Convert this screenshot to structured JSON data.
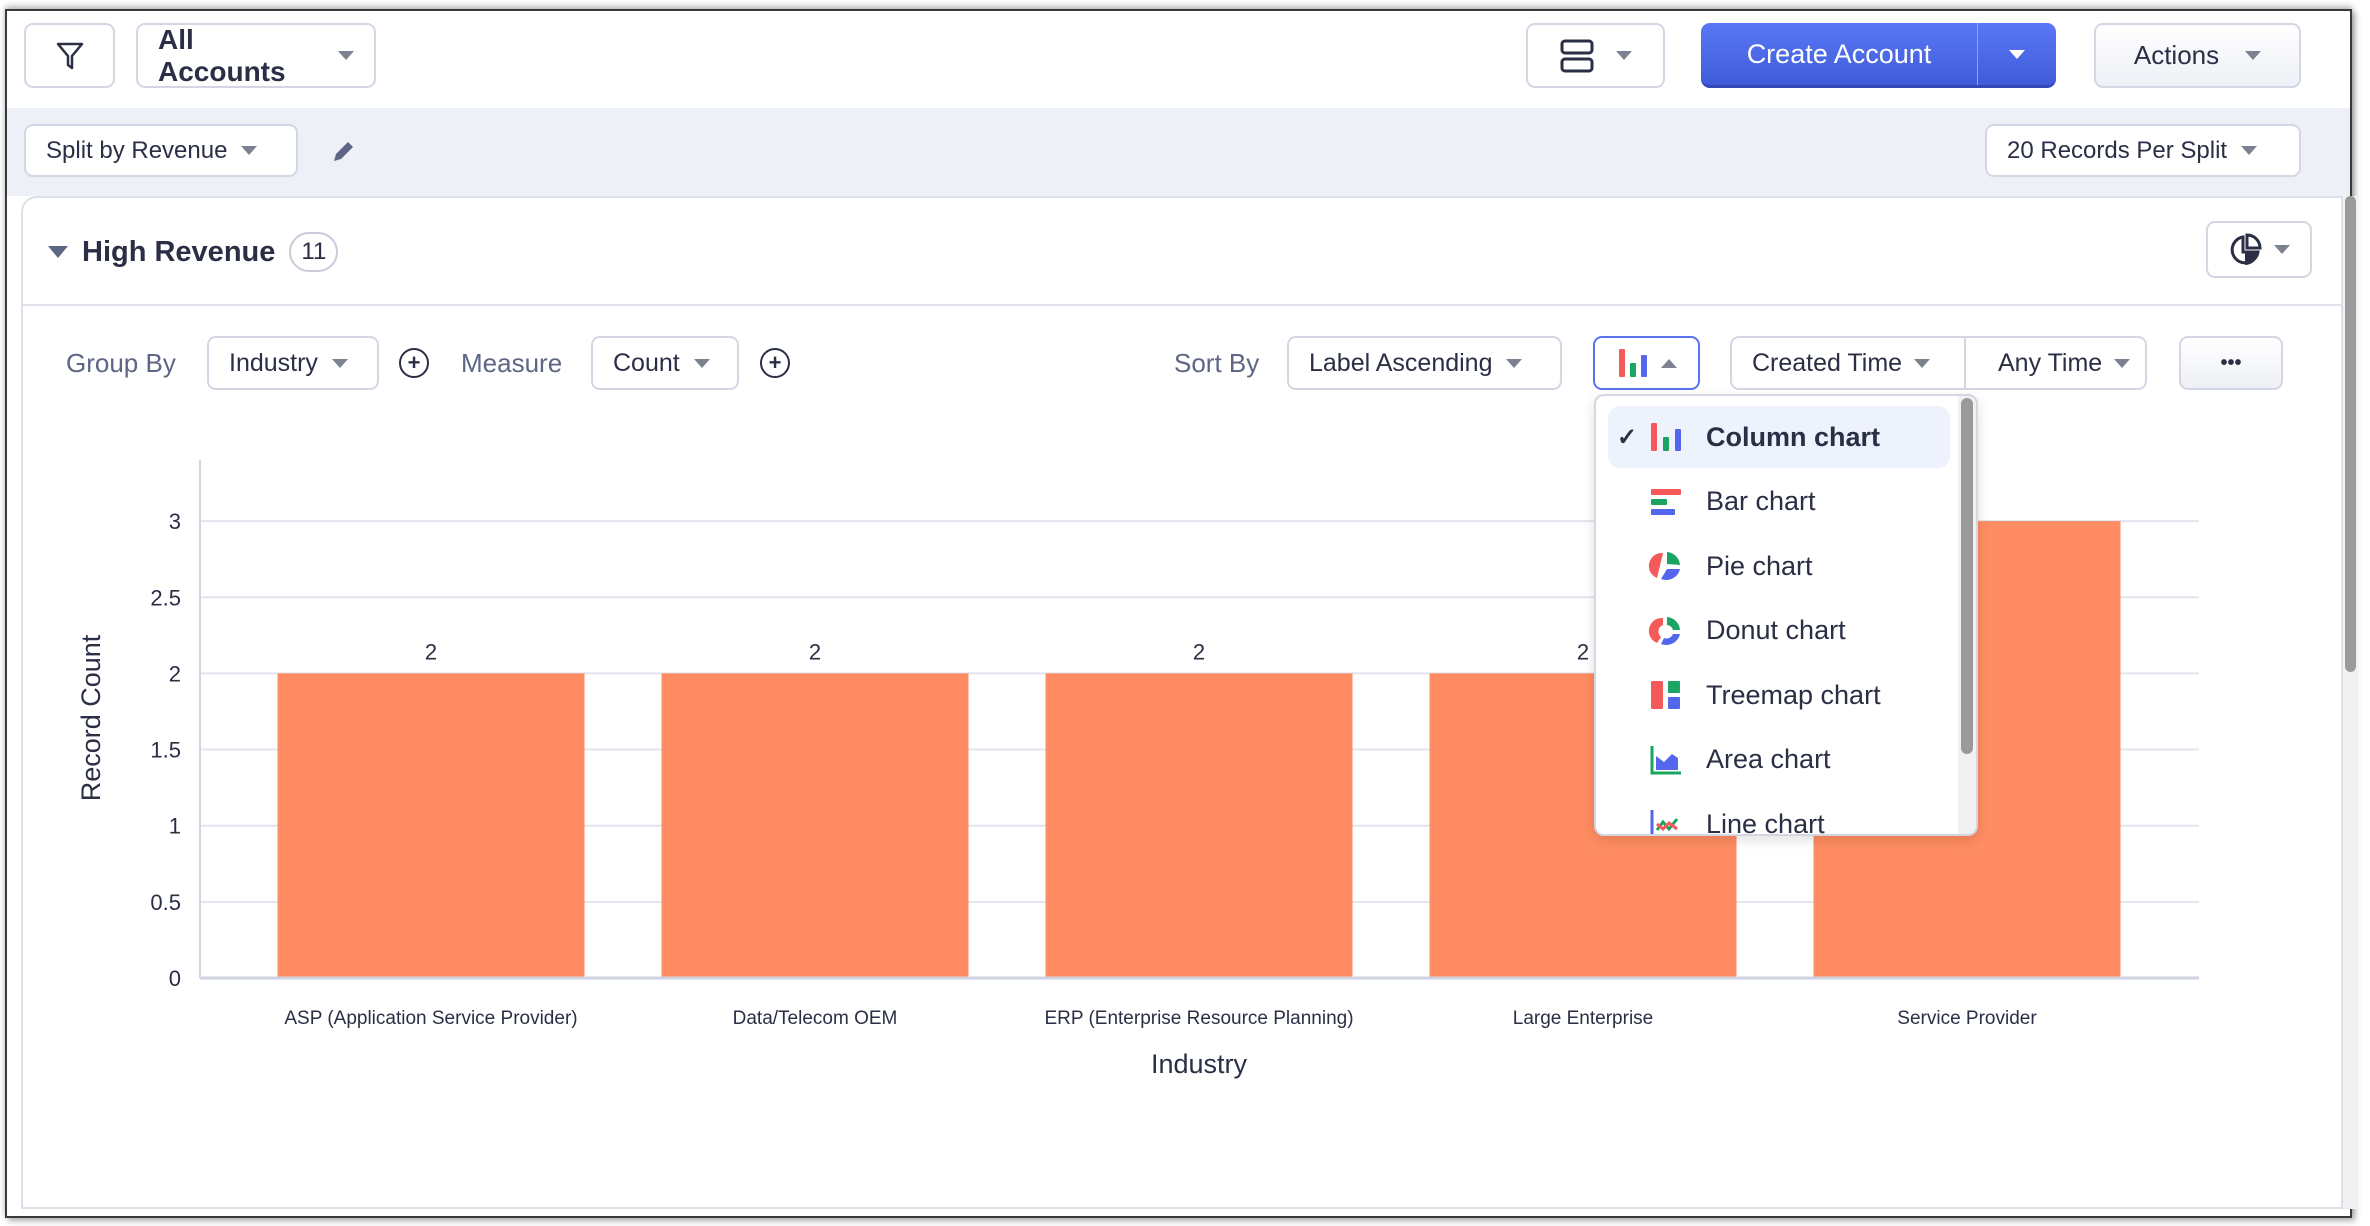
{
  "toolbar": {
    "view": "All Accounts",
    "create": "Create Account",
    "actions": "Actions"
  },
  "subbar": {
    "split": "Split by Revenue",
    "per_split": "20 Records Per Split"
  },
  "section": {
    "title": "High Revenue",
    "count": "11"
  },
  "controls": {
    "group_by_label": "Group By",
    "group_by": "Industry",
    "measure_label": "Measure",
    "measure": "Count",
    "sort_by_label": "Sort By",
    "sort_by": "Label Ascending",
    "date_field": "Created Time",
    "date_range": "Any Time",
    "more": "•••"
  },
  "chart_menu": {
    "items": [
      {
        "label": "Column chart",
        "icon": "column-chart-icon",
        "selected": true
      },
      {
        "label": "Bar chart",
        "icon": "bar-chart-icon"
      },
      {
        "label": "Pie chart",
        "icon": "pie-chart-icon"
      },
      {
        "label": "Donut chart",
        "icon": "donut-chart-icon"
      },
      {
        "label": "Treemap chart",
        "icon": "treemap-chart-icon"
      },
      {
        "label": "Area chart",
        "icon": "area-chart-icon"
      },
      {
        "label": "Line chart",
        "icon": "line-chart-icon"
      }
    ]
  },
  "colors": {
    "accent": "#4a67e8",
    "bar": "#ff8c62",
    "red": "#f55a5a",
    "green": "#1aa562",
    "blue": "#5467ec"
  },
  "chart_data": {
    "type": "bar",
    "categories": [
      "ASP (Application Service Provider)",
      "Data/Telecom OEM",
      "ERP (Enterprise Resource Planning)",
      "Large Enterprise",
      "Service Provider"
    ],
    "values": [
      2,
      2,
      2,
      2,
      3
    ],
    "data_labels": [
      "2",
      "2",
      "2",
      "2",
      "3"
    ],
    "xlabel": "Industry",
    "ylabel": "Record Count",
    "ylim": [
      0,
      3.4
    ],
    "yticks": [
      0,
      0.5,
      1,
      1.5,
      2,
      2.5,
      3
    ],
    "ytick_labels": [
      "0",
      "0.5",
      "1",
      "1.5",
      "2",
      "2.5",
      "3"
    ],
    "grid": true
  }
}
